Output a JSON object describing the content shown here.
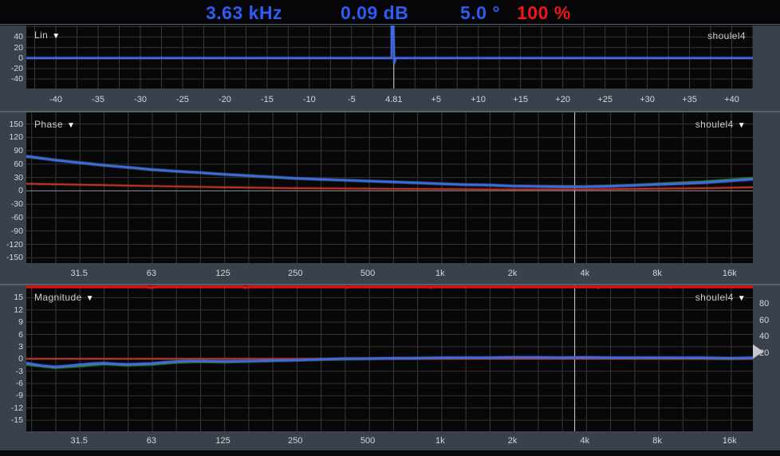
{
  "header": {
    "frequency": "3.63 kHz",
    "level": "0.09 dB",
    "phase": "5.0 °",
    "coherence": "100 %",
    "colors": {
      "value_blue": "#2d5cf2",
      "value_red": "#f21515"
    }
  },
  "icons": {
    "dropdown": "▼"
  },
  "panels": {
    "lin": {
      "title": "Lin",
      "trace_label": "shoulel4",
      "has_title_dropdown": true,
      "has_trace_dropdown": false
    },
    "phase": {
      "title": "Phase",
      "trace_label": "shoulel4",
      "has_title_dropdown": true,
      "has_trace_dropdown": true
    },
    "magnitude": {
      "title": "Magnitude",
      "trace_label": "shoulel4",
      "has_title_dropdown": true,
      "has_trace_dropdown": true
    }
  },
  "chart_data": [
    {
      "id": "lin",
      "type": "line",
      "title": "Impulse response (linear)",
      "x_axis": {
        "scale": "linear",
        "min": -43.5,
        "max": 42.5,
        "grid_step": 2.5,
        "ticks": [
          {
            "v": -40,
            "label": "-40"
          },
          {
            "v": -35,
            "label": "-35"
          },
          {
            "v": -30,
            "label": "-30"
          },
          {
            "v": -25,
            "label": "-25"
          },
          {
            "v": -20,
            "label": "-20"
          },
          {
            "v": -15,
            "label": "-15"
          },
          {
            "v": -10,
            "label": "-10"
          },
          {
            "v": -5,
            "label": "-5"
          },
          {
            "v": 0,
            "label": "4.81"
          },
          {
            "v": 5,
            "label": "+5"
          },
          {
            "v": 10,
            "label": "+10"
          },
          {
            "v": 15,
            "label": "+15"
          },
          {
            "v": 20,
            "label": "+20"
          },
          {
            "v": 25,
            "label": "+25"
          },
          {
            "v": 30,
            "label": "+30"
          },
          {
            "v": 35,
            "label": "+35"
          },
          {
            "v": 40,
            "label": "+40"
          }
        ]
      },
      "y_axis": {
        "min": -58,
        "max": 62,
        "grid_from": 60,
        "grid_to": -60,
        "grid_step": 20,
        "ticks": [
          40,
          20,
          0,
          -20,
          -40
        ]
      },
      "cursor_x": 0,
      "series": [
        {
          "name": "impulse",
          "color": "#4169e1",
          "width": 2.4,
          "points": [
            [
              -43.5,
              0
            ],
            [
              -0.25,
              0
            ],
            [
              -0.25,
              62
            ],
            [
              -0.05,
              62
            ],
            [
              0.05,
              -10
            ],
            [
              0.2,
              0
            ],
            [
              42.5,
              0
            ]
          ]
        }
      ]
    },
    {
      "id": "phase",
      "type": "line",
      "title": "Phase (degrees)",
      "x_axis": {
        "scale": "log",
        "min": 19,
        "max": 20000,
        "grid_start": 20,
        "grid_octave_div": 3,
        "ticks": [
          {
            "v": 31.5,
            "label": "31.5"
          },
          {
            "v": 63,
            "label": "63"
          },
          {
            "v": 125,
            "label": "125"
          },
          {
            "v": 250,
            "label": "250"
          },
          {
            "v": 500,
            "label": "500"
          },
          {
            "v": 1000,
            "label": "1k"
          },
          {
            "v": 2000,
            "label": "2k"
          },
          {
            "v": 4000,
            "label": "4k"
          },
          {
            "v": 8000,
            "label": "8k"
          },
          {
            "v": 16000,
            "label": "16k"
          }
        ]
      },
      "y_axis": {
        "min": -162,
        "max": 176,
        "grid_from": 150,
        "grid_to": -150,
        "grid_step": 30,
        "ticks": [
          150,
          120,
          90,
          60,
          30,
          0,
          -30,
          -60,
          -90,
          -120,
          -150
        ]
      },
      "cursor_x": 3630,
      "series": [
        {
          "name": "phase-green",
          "color": "#2e8b2e",
          "width": 2,
          "points": [
            [
              19,
              76
            ],
            [
              63,
              47
            ],
            [
              250,
              28
            ],
            [
              1000,
              16
            ],
            [
              2000,
              11
            ],
            [
              4000,
              10
            ],
            [
              6300,
              13
            ],
            [
              8000,
              16
            ],
            [
              12500,
              21
            ],
            [
              16000,
              25
            ],
            [
              20000,
              29
            ]
          ]
        },
        {
          "name": "phase-red",
          "color": "#c3372b",
          "width": 1.7,
          "points": [
            [
              19,
              16
            ],
            [
              31.5,
              14
            ],
            [
              63,
              11
            ],
            [
              125,
              8
            ],
            [
              250,
              6
            ],
            [
              500,
              5
            ],
            [
              1000,
              4
            ],
            [
              2000,
              3
            ],
            [
              4000,
              3
            ],
            [
              8000,
              5
            ],
            [
              12500,
              6
            ],
            [
              16000,
              7
            ],
            [
              20000,
              8
            ]
          ]
        },
        {
          "name": "phase-blue",
          "color": "#4169e1",
          "width": 2.6,
          "points": [
            [
              19,
              78
            ],
            [
              25,
              69
            ],
            [
              31.5,
              63
            ],
            [
              40,
              57
            ],
            [
              50,
              53
            ],
            [
              63,
              48
            ],
            [
              80,
              44
            ],
            [
              100,
              41
            ],
            [
              125,
              37
            ],
            [
              160,
              34
            ],
            [
              200,
              31
            ],
            [
              250,
              28
            ],
            [
              315,
              26
            ],
            [
              400,
              24
            ],
            [
              500,
              22
            ],
            [
              630,
              20
            ],
            [
              800,
              18
            ],
            [
              1000,
              16
            ],
            [
              1250,
              14
            ],
            [
              1600,
              13
            ],
            [
              2000,
              11
            ],
            [
              2500,
              10
            ],
            [
              3150,
              9
            ],
            [
              4000,
              9
            ],
            [
              5000,
              10
            ],
            [
              6300,
              12
            ],
            [
              8000,
              14
            ],
            [
              10000,
              16
            ],
            [
              12500,
              18
            ],
            [
              16000,
              22
            ],
            [
              20000,
              26
            ]
          ]
        }
      ]
    },
    {
      "id": "magnitude",
      "type": "line",
      "title": "Magnitude (dB) with coherence (%)",
      "x_axis": {
        "scale": "log",
        "min": 19,
        "max": 20000,
        "grid_start": 20,
        "grid_octave_div": 3,
        "ticks": [
          {
            "v": 31.5,
            "label": "31.5"
          },
          {
            "v": 63,
            "label": "63"
          },
          {
            "v": 125,
            "label": "125"
          },
          {
            "v": 250,
            "label": "250"
          },
          {
            "v": 500,
            "label": "500"
          },
          {
            "v": 1000,
            "label": "1k"
          },
          {
            "v": 2000,
            "label": "2k"
          },
          {
            "v": 4000,
            "label": "4k"
          },
          {
            "v": 8000,
            "label": "8k"
          },
          {
            "v": 16000,
            "label": "16k"
          }
        ]
      },
      "y_axis": {
        "min": -17.7,
        "max": 18,
        "grid_from": 15,
        "grid_to": -15,
        "grid_step": 3,
        "ticks": [
          15,
          12,
          9,
          6,
          3,
          0,
          -3,
          -6,
          -9,
          -12,
          -15
        ]
      },
      "coherence_axis": {
        "db_at_100": 17.7,
        "db_per_pct": 0.2047,
        "ticks": [
          80,
          60,
          40,
          20
        ],
        "pointer_pct": 22
      },
      "cursor_x": 3630,
      "series": [
        {
          "name": "coherence-red",
          "color": "#e01414",
          "width": 3,
          "axis": "coherence",
          "points": [
            [
              19,
              99.7
            ],
            [
              60,
              99.7
            ],
            [
              63,
              99.0
            ],
            [
              66,
              99.7
            ],
            [
              150,
              99.7
            ],
            [
              155,
              98.9
            ],
            [
              160,
              99.7
            ],
            [
              400,
              99.7
            ],
            [
              410,
              99.2
            ],
            [
              420,
              99.7
            ],
            [
              900,
              99.7
            ],
            [
              910,
              99.0
            ],
            [
              920,
              99.7
            ],
            [
              2000,
              99.7
            ],
            [
              2020,
              99.2
            ],
            [
              2040,
              99.7
            ],
            [
              4500,
              99.7
            ],
            [
              4540,
              98.9
            ],
            [
              4580,
              99.7
            ],
            [
              9000,
              99.7
            ],
            [
              9080,
              99.1
            ],
            [
              9160,
              99.7
            ],
            [
              15000,
              99.7
            ],
            [
              15100,
              99.3
            ],
            [
              15200,
              99.7
            ],
            [
              20000,
              99.7
            ]
          ]
        },
        {
          "name": "magnitude-green",
          "color": "#2e8b2e",
          "width": 2,
          "points": [
            [
              19,
              -1.4
            ],
            [
              25,
              -2.2
            ],
            [
              31.5,
              -1.8
            ],
            [
              40,
              -1.3
            ],
            [
              50,
              -1.6
            ],
            [
              63,
              -1.4
            ],
            [
              80,
              -0.9
            ],
            [
              100,
              -0.7
            ],
            [
              125,
              -0.8
            ],
            [
              200,
              -0.5
            ],
            [
              315,
              -0.2
            ],
            [
              500,
              0.0
            ],
            [
              1000,
              0.2
            ],
            [
              2000,
              0.3
            ],
            [
              4000,
              0.3
            ],
            [
              8000,
              0.2
            ],
            [
              12500,
              0.1
            ],
            [
              16000,
              0.0
            ],
            [
              20000,
              0.1
            ]
          ]
        },
        {
          "name": "magnitude-red",
          "color": "#c3372b",
          "width": 1.6,
          "points": [
            [
              19,
              0.05
            ],
            [
              20000,
              0.05
            ]
          ]
        },
        {
          "name": "magnitude-blue",
          "color": "#4169e1",
          "width": 2.6,
          "points": [
            [
              19,
              -1.0
            ],
            [
              22,
              -1.6
            ],
            [
              25,
              -1.9
            ],
            [
              28,
              -1.7
            ],
            [
              31.5,
              -1.4
            ],
            [
              36,
              -1.1
            ],
            [
              40,
              -1.0
            ],
            [
              45,
              -1.2
            ],
            [
              50,
              -1.3
            ],
            [
              56,
              -1.2
            ],
            [
              63,
              -1.1
            ],
            [
              71,
              -0.8
            ],
            [
              80,
              -0.6
            ],
            [
              90,
              -0.5
            ],
            [
              100,
              -0.5
            ],
            [
              125,
              -0.6
            ],
            [
              160,
              -0.5
            ],
            [
              200,
              -0.4
            ],
            [
              250,
              -0.3
            ],
            [
              315,
              -0.1
            ],
            [
              400,
              0.1
            ],
            [
              500,
              0.1
            ],
            [
              630,
              0.2
            ],
            [
              800,
              0.2
            ],
            [
              1000,
              0.3
            ],
            [
              1250,
              0.3
            ],
            [
              1600,
              0.3
            ],
            [
              2000,
              0.4
            ],
            [
              2500,
              0.4
            ],
            [
              3150,
              0.3
            ],
            [
              4000,
              0.4
            ],
            [
              5000,
              0.3
            ],
            [
              6300,
              0.3
            ],
            [
              8000,
              0.3
            ],
            [
              10000,
              0.3
            ],
            [
              12500,
              0.3
            ],
            [
              16000,
              0.2
            ],
            [
              20000,
              0.3
            ]
          ]
        }
      ]
    }
  ]
}
